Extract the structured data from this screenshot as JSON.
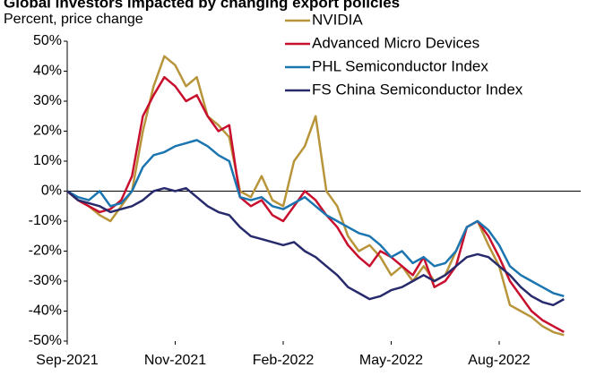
{
  "chart_data": {
    "type": "line",
    "title": "Global investors impacted by changing export policies",
    "subtitle": "Percent, price change",
    "categories": [
      "Sep-2021",
      null,
      null,
      null,
      null,
      null,
      null,
      null,
      null,
      null,
      "Nov-2021",
      null,
      null,
      null,
      null,
      null,
      null,
      null,
      null,
      null,
      "Feb-2022",
      null,
      null,
      null,
      null,
      null,
      null,
      null,
      null,
      null,
      "May-2022",
      null,
      null,
      null,
      null,
      null,
      null,
      null,
      null,
      null,
      "Aug-2022",
      null,
      null,
      null,
      null,
      null,
      null
    ],
    "ylim": [
      -50,
      50
    ],
    "yticks": [
      {
        "value": -50,
        "label": "-50%"
      },
      {
        "value": -40,
        "label": "-40%"
      },
      {
        "value": -30,
        "label": "-30%"
      },
      {
        "value": -20,
        "label": "-20%"
      },
      {
        "value": -10,
        "label": "-10%"
      },
      {
        "value": 0,
        "label": "0%"
      },
      {
        "value": 10,
        "label": "10%"
      },
      {
        "value": 20,
        "label": "20%"
      },
      {
        "value": 30,
        "label": "30%"
      },
      {
        "value": 40,
        "label": "40%"
      },
      {
        "value": 50,
        "label": "50%"
      }
    ],
    "series": [
      {
        "name": "NVIDIA",
        "color": "#b8953a",
        "values": [
          0,
          -3,
          -5,
          -8,
          -10,
          -5,
          0,
          20,
          35,
          45,
          42,
          35,
          38,
          25,
          22,
          18,
          0,
          -2,
          5,
          -3,
          -5,
          10,
          15,
          25,
          0,
          -5,
          -15,
          -20,
          -18,
          -22,
          -28,
          -25,
          -30,
          -25,
          -30,
          -28,
          -20,
          -12,
          -10,
          -18,
          -25,
          -38,
          -40,
          -42,
          -45,
          -47,
          -48
        ]
      },
      {
        "name": "Advanced Micro Devices",
        "color": "#c8102e",
        "values": [
          0,
          -3,
          -5,
          -7,
          -6,
          -3,
          5,
          25,
          32,
          38,
          35,
          30,
          32,
          25,
          20,
          22,
          -2,
          -5,
          -3,
          -8,
          -10,
          -5,
          0,
          -3,
          -8,
          -12,
          -18,
          -22,
          -25,
          -20,
          -22,
          -25,
          -28,
          -22,
          -32,
          -30,
          -25,
          -12,
          -10,
          -15,
          -22,
          -30,
          -35,
          -40,
          -43,
          -45,
          -47
        ]
      },
      {
        "name": "PHL Semiconductor Index",
        "color": "#1a75b0",
        "values": [
          0,
          -2,
          -3,
          0,
          -5,
          -4,
          0,
          8,
          12,
          13,
          15,
          16,
          17,
          15,
          12,
          10,
          -2,
          -3,
          -2,
          -5,
          -6,
          -4,
          -2,
          -5,
          -8,
          -10,
          -12,
          -14,
          -15,
          -18,
          -22,
          -20,
          -24,
          -22,
          -25,
          -24,
          -20,
          -12,
          -10,
          -13,
          -18,
          -25,
          -28,
          -30,
          -32,
          -34,
          -35
        ]
      },
      {
        "name": "FS China Semiconductor Index",
        "color": "#272a6b",
        "values": [
          0,
          -3,
          -4,
          -5,
          -7,
          -6,
          -5,
          -3,
          0,
          1,
          0,
          1,
          -2,
          -5,
          -7,
          -8,
          -12,
          -15,
          -16,
          -17,
          -18,
          -17,
          -20,
          -22,
          -25,
          -28,
          -32,
          -34,
          -36,
          -35,
          -33,
          -32,
          -30,
          -28,
          -30,
          -28,
          -25,
          -22,
          -21,
          -22,
          -25,
          -28,
          -32,
          -35,
          -37,
          -38,
          -36
        ]
      }
    ]
  }
}
